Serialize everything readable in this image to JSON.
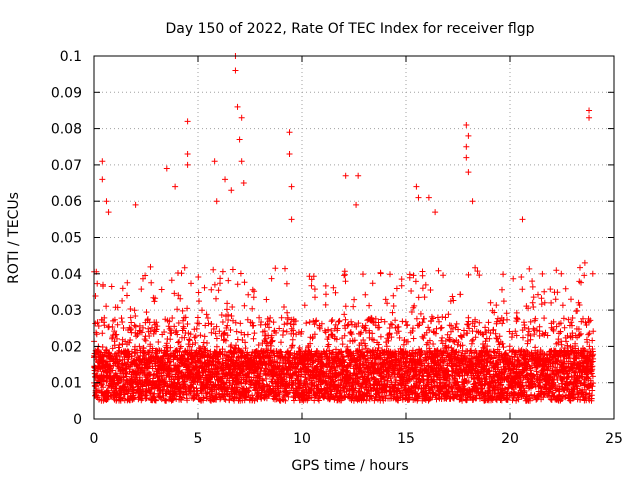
{
  "chart_data": {
    "type": "scatter",
    "title": "Day 150 of 2022, Rate Of TEC Index for receiver flgp",
    "xlabel": "GPS time / hours",
    "ylabel": "ROTI / TECUs",
    "xlim": [
      0,
      25
    ],
    "ylim": [
      0,
      0.1
    ],
    "xticks": [
      0,
      5,
      10,
      15,
      20,
      25
    ],
    "yticks": [
      0,
      0.01,
      0.02,
      0.03,
      0.04,
      0.05,
      0.06,
      0.07,
      0.08,
      0.09,
      0.1
    ],
    "xtick_labels": [
      "0",
      "5",
      "10",
      "15",
      "20",
      "25"
    ],
    "ytick_labels": [
      "0",
      "0.01",
      "0.02",
      "0.03",
      "0.04",
      "0.05",
      "0.06",
      "0.07",
      "0.08",
      "0.09",
      "0.1"
    ],
    "grid": true,
    "marker": "plus",
    "color": "#ff0000",
    "series": [
      {
        "name": "ROTI",
        "x_range": [
          0,
          24
        ],
        "sample_interval_hours": 0.0167,
        "typical_range": [
          0.005,
          0.02
        ],
        "max": 0.1,
        "notable_points": [
          {
            "x": 0.4,
            "y": 0.071
          },
          {
            "x": 0.4,
            "y": 0.066
          },
          {
            "x": 0.6,
            "y": 0.06
          },
          {
            "x": 0.7,
            "y": 0.057
          },
          {
            "x": 2.0,
            "y": 0.059
          },
          {
            "x": 3.5,
            "y": 0.069
          },
          {
            "x": 3.9,
            "y": 0.064
          },
          {
            "x": 4.5,
            "y": 0.082
          },
          {
            "x": 4.5,
            "y": 0.073
          },
          {
            "x": 4.5,
            "y": 0.07
          },
          {
            "x": 5.8,
            "y": 0.071
          },
          {
            "x": 5.9,
            "y": 0.06
          },
          {
            "x": 6.3,
            "y": 0.066
          },
          {
            "x": 6.6,
            "y": 0.063
          },
          {
            "x": 6.8,
            "y": 0.1
          },
          {
            "x": 6.8,
            "y": 0.096
          },
          {
            "x": 6.9,
            "y": 0.086
          },
          {
            "x": 7.0,
            "y": 0.077
          },
          {
            "x": 7.1,
            "y": 0.083
          },
          {
            "x": 7.1,
            "y": 0.071
          },
          {
            "x": 7.2,
            "y": 0.065
          },
          {
            "x": 9.4,
            "y": 0.079
          },
          {
            "x": 9.4,
            "y": 0.073
          },
          {
            "x": 9.5,
            "y": 0.064
          },
          {
            "x": 9.5,
            "y": 0.055
          },
          {
            "x": 12.1,
            "y": 0.067
          },
          {
            "x": 12.7,
            "y": 0.067
          },
          {
            "x": 12.6,
            "y": 0.059
          },
          {
            "x": 15.5,
            "y": 0.064
          },
          {
            "x": 15.6,
            "y": 0.061
          },
          {
            "x": 16.1,
            "y": 0.061
          },
          {
            "x": 16.4,
            "y": 0.057
          },
          {
            "x": 17.9,
            "y": 0.081
          },
          {
            "x": 18.0,
            "y": 0.078
          },
          {
            "x": 17.9,
            "y": 0.075
          },
          {
            "x": 17.9,
            "y": 0.072
          },
          {
            "x": 18.0,
            "y": 0.068
          },
          {
            "x": 18.2,
            "y": 0.06
          },
          {
            "x": 20.6,
            "y": 0.055
          },
          {
            "x": 23.8,
            "y": 0.085
          },
          {
            "x": 23.8,
            "y": 0.083
          },
          {
            "x": 23.6,
            "y": 0.043
          }
        ]
      }
    ]
  }
}
